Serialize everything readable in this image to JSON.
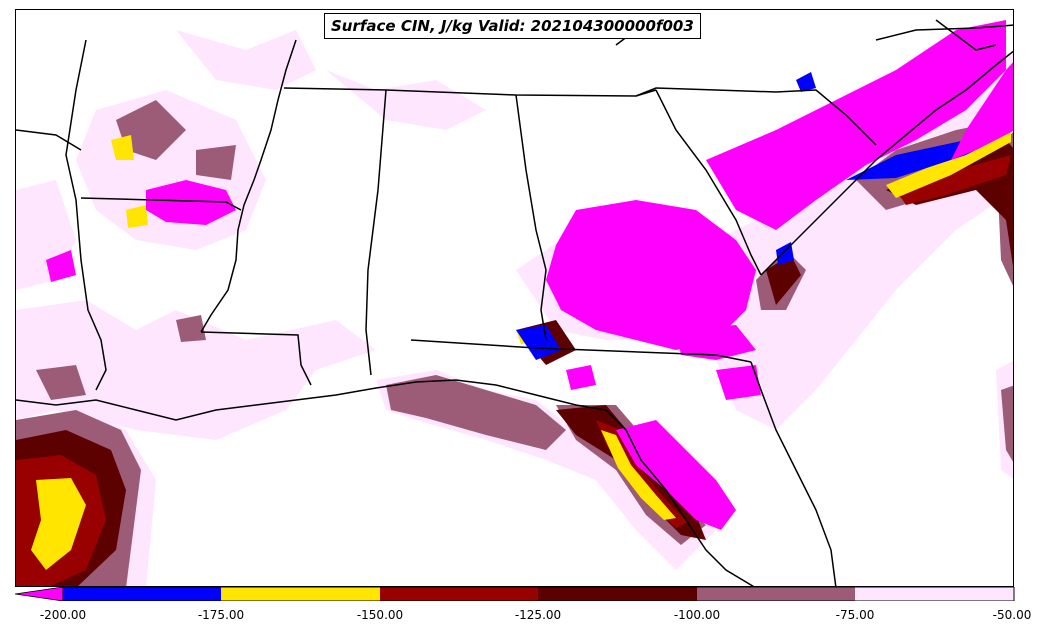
{
  "title": "Surface CIN, J/kg Valid: 202104300000f003",
  "colors": {
    "lt200": "#ff00ff",
    "b200_175": "#0000ff",
    "b175_150": "#ffe500",
    "b150_125": "#990000",
    "b125_100": "#5c0000",
    "b100_75": "#9c5c78",
    "b75_50": "#ffe6ff",
    "borders": "#000000"
  },
  "colorbar": {
    "ticks": [
      "-200.00",
      "-175.00",
      "-150.00",
      "-125.00",
      "-100.00",
      "-75.00",
      "-50.00"
    ],
    "bands": [
      "#0000ff",
      "#ffe500",
      "#990000",
      "#5c0000",
      "#9c5c78",
      "#ffe6ff"
    ],
    "extend_low_color": "#ff00ff"
  }
}
